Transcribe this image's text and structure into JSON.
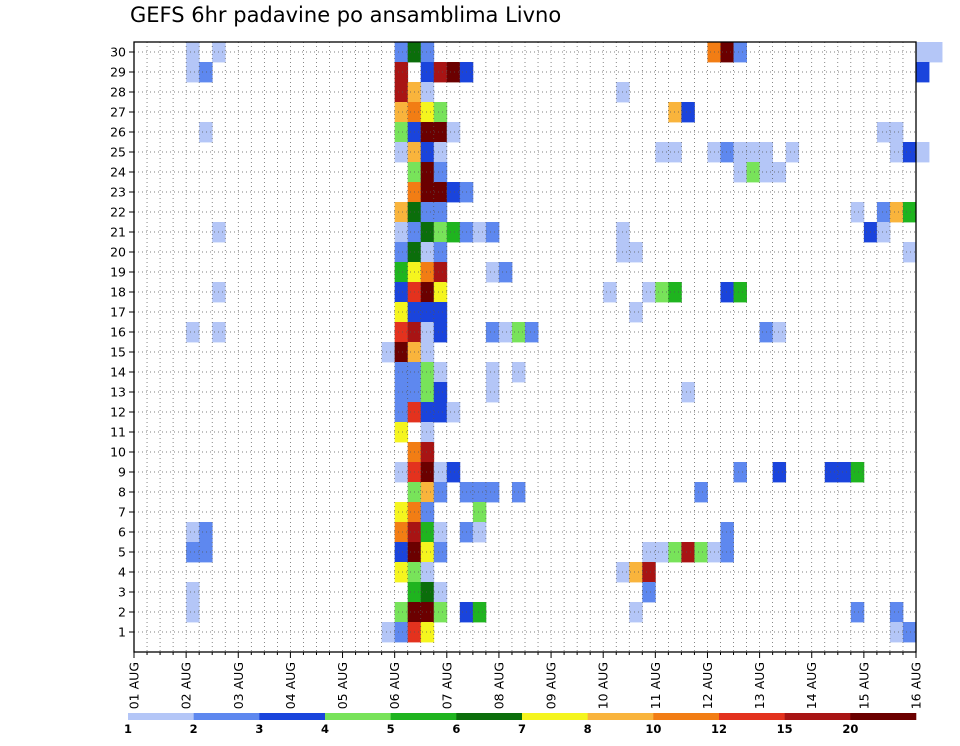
{
  "chart_data": {
    "type": "heatmap",
    "title": "GEFS 6hr padavine po ansamblima Livno",
    "xlabel": "",
    "ylabel": "",
    "x_tick_labels": [
      "01 AUG",
      "02 AUG",
      "03 AUG",
      "04 AUG",
      "05 AUG",
      "06 AUG",
      "07 AUG",
      "08 AUG",
      "09 AUG",
      "10 AUG",
      "11 AUG",
      "12 AUG",
      "13 AUG",
      "14 AUG",
      "15 AUG",
      "16 AUG"
    ],
    "y_tick_labels": [
      "1",
      "2",
      "3",
      "4",
      "5",
      "6",
      "7",
      "8",
      "9",
      "10",
      "11",
      "12",
      "13",
      "14",
      "15",
      "16",
      "17",
      "18",
      "19",
      "20",
      "21",
      "22",
      "23",
      "24",
      "25",
      "26",
      "27",
      "28",
      "29",
      "30"
    ],
    "xlim_days": [
      1,
      16
    ],
    "time_step_hours": 6,
    "ylim": [
      0,
      30
    ],
    "grid": true,
    "colorbar": {
      "labels": [
        "1",
        "2",
        "3",
        "4",
        "5",
        "6",
        "7",
        "8",
        "10",
        "12",
        "15",
        "20"
      ],
      "colors": [
        "#b4c6f7",
        "#5e88ef",
        "#1a44dc",
        "#78e35a",
        "#1fb41f",
        "#0b6e0b",
        "#f5f51e",
        "#f9b43c",
        "#f27d14",
        "#e3321e",
        "#a81414",
        "#6b0000"
      ]
    },
    "cells_member_step_bin": [
      [
        30,
        4,
        0
      ],
      [
        30,
        6,
        0
      ],
      [
        30,
        20,
        1
      ],
      [
        30,
        21,
        5
      ],
      [
        30,
        22,
        1
      ],
      [
        30,
        44,
        8
      ],
      [
        30,
        45,
        11
      ],
      [
        30,
        46,
        1
      ],
      [
        30,
        60,
        0
      ],
      [
        30,
        61,
        0
      ],
      [
        29,
        4,
        0
      ],
      [
        29,
        5,
        1
      ],
      [
        29,
        20,
        10
      ],
      [
        29,
        22,
        2
      ],
      [
        29,
        23,
        10
      ],
      [
        29,
        24,
        11
      ],
      [
        29,
        25,
        2
      ],
      [
        29,
        60,
        2
      ],
      [
        28,
        20,
        10
      ],
      [
        28,
        21,
        7
      ],
      [
        28,
        22,
        0
      ],
      [
        28,
        37,
        0
      ],
      [
        27,
        20,
        7
      ],
      [
        27,
        21,
        8
      ],
      [
        27,
        22,
        6
      ],
      [
        27,
        23,
        3
      ],
      [
        27,
        41,
        7
      ],
      [
        27,
        42,
        2
      ],
      [
        26,
        5,
        0
      ],
      [
        26,
        20,
        3
      ],
      [
        26,
        21,
        2
      ],
      [
        26,
        22,
        11
      ],
      [
        26,
        23,
        11
      ],
      [
        26,
        24,
        0
      ],
      [
        26,
        57,
        0
      ],
      [
        26,
        58,
        0
      ],
      [
        25,
        20,
        0
      ],
      [
        25,
        21,
        7
      ],
      [
        25,
        22,
        2
      ],
      [
        25,
        23,
        0
      ],
      [
        25,
        40,
        0
      ],
      [
        25,
        41,
        0
      ],
      [
        25,
        44,
        0
      ],
      [
        25,
        45,
        1
      ],
      [
        25,
        46,
        0
      ],
      [
        25,
        47,
        0
      ],
      [
        25,
        48,
        0
      ],
      [
        25,
        50,
        0
      ],
      [
        25,
        58,
        0
      ],
      [
        25,
        59,
        2
      ],
      [
        25,
        60,
        0
      ],
      [
        24,
        21,
        3
      ],
      [
        24,
        22,
        11
      ],
      [
        24,
        23,
        1
      ],
      [
        24,
        46,
        0
      ],
      [
        24,
        47,
        3
      ],
      [
        24,
        48,
        0
      ],
      [
        24,
        49,
        0
      ],
      [
        23,
        21,
        8
      ],
      [
        23,
        22,
        11
      ],
      [
        23,
        23,
        11
      ],
      [
        23,
        24,
        2
      ],
      [
        23,
        25,
        1
      ],
      [
        22,
        20,
        7
      ],
      [
        22,
        21,
        5
      ],
      [
        22,
        22,
        1
      ],
      [
        22,
        23,
        1
      ],
      [
        22,
        55,
        0
      ],
      [
        22,
        57,
        1
      ],
      [
        22,
        58,
        7
      ],
      [
        22,
        59,
        4
      ],
      [
        21,
        6,
        0
      ],
      [
        21,
        20,
        0
      ],
      [
        21,
        21,
        1
      ],
      [
        21,
        22,
        5
      ],
      [
        21,
        23,
        3
      ],
      [
        21,
        24,
        4
      ],
      [
        21,
        25,
        1
      ],
      [
        21,
        26,
        0
      ],
      [
        21,
        27,
        1
      ],
      [
        21,
        37,
        0
      ],
      [
        21,
        56,
        2
      ],
      [
        21,
        57,
        0
      ],
      [
        20,
        20,
        1
      ],
      [
        20,
        21,
        5
      ],
      [
        20,
        22,
        0
      ],
      [
        20,
        23,
        1
      ],
      [
        20,
        37,
        0
      ],
      [
        20,
        38,
        0
      ],
      [
        20,
        59,
        0
      ],
      [
        19,
        20,
        4
      ],
      [
        19,
        21,
        6
      ],
      [
        19,
        22,
        8
      ],
      [
        19,
        23,
        10
      ],
      [
        19,
        27,
        0
      ],
      [
        19,
        28,
        1
      ],
      [
        18,
        6,
        0
      ],
      [
        18,
        20,
        2
      ],
      [
        18,
        21,
        9
      ],
      [
        18,
        22,
        11
      ],
      [
        18,
        23,
        6
      ],
      [
        18,
        36,
        0
      ],
      [
        18,
        39,
        0
      ],
      [
        18,
        40,
        3
      ],
      [
        18,
        41,
        4
      ],
      [
        18,
        45,
        2
      ],
      [
        18,
        46,
        4
      ],
      [
        17,
        20,
        6
      ],
      [
        17,
        21,
        2
      ],
      [
        17,
        22,
        2
      ],
      [
        17,
        23,
        2
      ],
      [
        17,
        38,
        0
      ],
      [
        16,
        4,
        0
      ],
      [
        16,
        6,
        0
      ],
      [
        16,
        20,
        9
      ],
      [
        16,
        21,
        10
      ],
      [
        16,
        22,
        0
      ],
      [
        16,
        23,
        2
      ],
      [
        16,
        27,
        1
      ],
      [
        16,
        28,
        0
      ],
      [
        16,
        29,
        3
      ],
      [
        16,
        30,
        1
      ],
      [
        16,
        48,
        1
      ],
      [
        16,
        49,
        0
      ],
      [
        15,
        19,
        0
      ],
      [
        15,
        20,
        11
      ],
      [
        15,
        21,
        7
      ],
      [
        15,
        22,
        0
      ],
      [
        14,
        20,
        1
      ],
      [
        14,
        21,
        1
      ],
      [
        14,
        22,
        3
      ],
      [
        14,
        23,
        0
      ],
      [
        14,
        27,
        0
      ],
      [
        14,
        29,
        0
      ],
      [
        13,
        20,
        1
      ],
      [
        13,
        21,
        1
      ],
      [
        13,
        22,
        3
      ],
      [
        13,
        23,
        2
      ],
      [
        13,
        27,
        0
      ],
      [
        13,
        42,
        0
      ],
      [
        12,
        20,
        1
      ],
      [
        12,
        21,
        9
      ],
      [
        12,
        22,
        2
      ],
      [
        12,
        23,
        2
      ],
      [
        12,
        24,
        0
      ],
      [
        11,
        20,
        6
      ],
      [
        11,
        22,
        0
      ],
      [
        10,
        21,
        8
      ],
      [
        10,
        22,
        10
      ],
      [
        9,
        20,
        0
      ],
      [
        9,
        21,
        9
      ],
      [
        9,
        22,
        11
      ],
      [
        9,
        23,
        0
      ],
      [
        9,
        24,
        2
      ],
      [
        9,
        46,
        1
      ],
      [
        9,
        49,
        2
      ],
      [
        9,
        53,
        2
      ],
      [
        9,
        54,
        2
      ],
      [
        9,
        55,
        4
      ],
      [
        8,
        21,
        3
      ],
      [
        8,
        22,
        7
      ],
      [
        8,
        23,
        1
      ],
      [
        8,
        25,
        1
      ],
      [
        8,
        26,
        1
      ],
      [
        8,
        27,
        1
      ],
      [
        8,
        29,
        1
      ],
      [
        8,
        43,
        1
      ],
      [
        7,
        20,
        6
      ],
      [
        7,
        21,
        8
      ],
      [
        7,
        22,
        1
      ],
      [
        7,
        26,
        3
      ],
      [
        6,
        4,
        0
      ],
      [
        6,
        5,
        1
      ],
      [
        6,
        20,
        8
      ],
      [
        6,
        21,
        10
      ],
      [
        6,
        22,
        4
      ],
      [
        6,
        23,
        0
      ],
      [
        6,
        25,
        1
      ],
      [
        6,
        26,
        0
      ],
      [
        6,
        45,
        1
      ],
      [
        5,
        4,
        1
      ],
      [
        5,
        5,
        1
      ],
      [
        5,
        20,
        2
      ],
      [
        5,
        21,
        11
      ],
      [
        5,
        22,
        6
      ],
      [
        5,
        23,
        1
      ],
      [
        5,
        39,
        0
      ],
      [
        5,
        40,
        0
      ],
      [
        5,
        41,
        3
      ],
      [
        5,
        42,
        10
      ],
      [
        5,
        43,
        3
      ],
      [
        5,
        44,
        0
      ],
      [
        5,
        45,
        1
      ],
      [
        4,
        20,
        6
      ],
      [
        4,
        21,
        3
      ],
      [
        4,
        22,
        0
      ],
      [
        4,
        37,
        0
      ],
      [
        4,
        38,
        7
      ],
      [
        4,
        39,
        10
      ],
      [
        3,
        4,
        0
      ],
      [
        3,
        21,
        4
      ],
      [
        3,
        22,
        5
      ],
      [
        3,
        23,
        0
      ],
      [
        3,
        39,
        1
      ],
      [
        2,
        4,
        0
      ],
      [
        2,
        20,
        3
      ],
      [
        2,
        21,
        11
      ],
      [
        2,
        22,
        11
      ],
      [
        2,
        23,
        3
      ],
      [
        2,
        25,
        2
      ],
      [
        2,
        26,
        4
      ],
      [
        2,
        38,
        0
      ],
      [
        2,
        55,
        1
      ],
      [
        2,
        58,
        1
      ],
      [
        1,
        19,
        0
      ],
      [
        1,
        20,
        1
      ],
      [
        1,
        21,
        9
      ],
      [
        1,
        22,
        6
      ],
      [
        1,
        58,
        0
      ],
      [
        1,
        59,
        1
      ]
    ]
  }
}
